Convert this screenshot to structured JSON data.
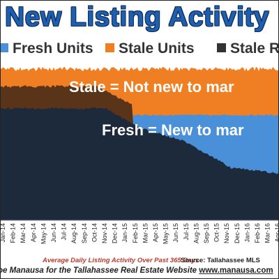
{
  "chart_data": {
    "type": "area",
    "title": "New Listing Activity",
    "series": [
      {
        "name": "Fresh Units",
        "color": "#4a90d9"
      },
      {
        "name": "Stale Units",
        "color": "#f07f24"
      },
      {
        "name": "Stale R",
        "color": "#333333"
      }
    ],
    "x_tick_labels": [
      "Jan-14",
      "Feb-14",
      "Mar-14",
      "Apr-14",
      "May-14",
      "Jun-14",
      "Jul-14",
      "Aug-14",
      "Sep-14",
      "Oct-14",
      "Nov-14",
      "Dec-14",
      "Jan-15",
      "Feb-15",
      "Mar-15",
      "Apr-15",
      "May-15",
      "Jun-15",
      "Jul-15",
      "Aug-15",
      "Sep-15",
      "Oct-15",
      "Nov-15",
      "Dec-15",
      "Jan-16",
      "Feb-16",
      "Mar-16",
      "Apr-16"
    ],
    "annotations": [
      "Stale = Not new to mar",
      "Fresh = New to mar"
    ],
    "grid": false,
    "legend_position": "top"
  },
  "footer": {
    "caption": "Average Daily Listing Activity Over Past 365 Days",
    "source": "Source: Tallahassee MLS",
    "credit_prefix": "oe Manausa for the Tallahassee Real Estate Website",
    "credit_url": "www.manausa.com"
  }
}
